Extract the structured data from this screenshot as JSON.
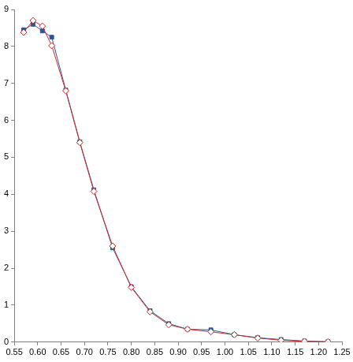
{
  "chart_data": {
    "type": "line",
    "x": [
      0.57,
      0.59,
      0.61,
      0.63,
      0.66,
      0.69,
      0.72,
      0.76,
      0.8,
      0.84,
      0.88,
      0.92,
      0.97,
      1.02,
      1.07,
      1.12,
      1.17,
      1.22
    ],
    "series": [
      {
        "color": "#2b5797",
        "marker": "square",
        "values": [
          8.45,
          8.6,
          8.42,
          8.25,
          6.82,
          5.42,
          4.12,
          2.55,
          1.5,
          0.85,
          0.5,
          0.35,
          0.33,
          0.2,
          0.12,
          0.07,
          0.03,
          0.01
        ]
      },
      {
        "color": "#d02828",
        "marker": "diamond",
        "values": [
          8.38,
          8.7,
          8.55,
          8.02,
          6.8,
          5.4,
          4.08,
          2.6,
          1.48,
          0.82,
          0.47,
          0.35,
          0.28,
          0.2,
          0.11,
          0.05,
          0.02,
          0.01
        ]
      }
    ],
    "xlim": [
      0.55,
      1.25
    ],
    "xticks": [
      0.55,
      {
        "value": 0.6,
        "label": "0.60"
      },
      0.65,
      {
        "value": 0.7,
        "label": "0.70"
      },
      0.75,
      {
        "value": 0.8,
        "label": "0.80"
      },
      0.85,
      {
        "value": 0.9,
        "label": "0.90"
      },
      0.95,
      {
        "value": 1,
        "label": "1.00"
      },
      1.05,
      {
        "value": 1.1,
        "label": "1.10"
      },
      1.15,
      {
        "value": 1.2,
        "label": "1.20"
      },
      1.25
    ],
    "ylim": [
      0,
      9
    ],
    "yticks": [
      0,
      1,
      2,
      3,
      4,
      5,
      6,
      7,
      8,
      9
    ],
    "grid": false
  }
}
